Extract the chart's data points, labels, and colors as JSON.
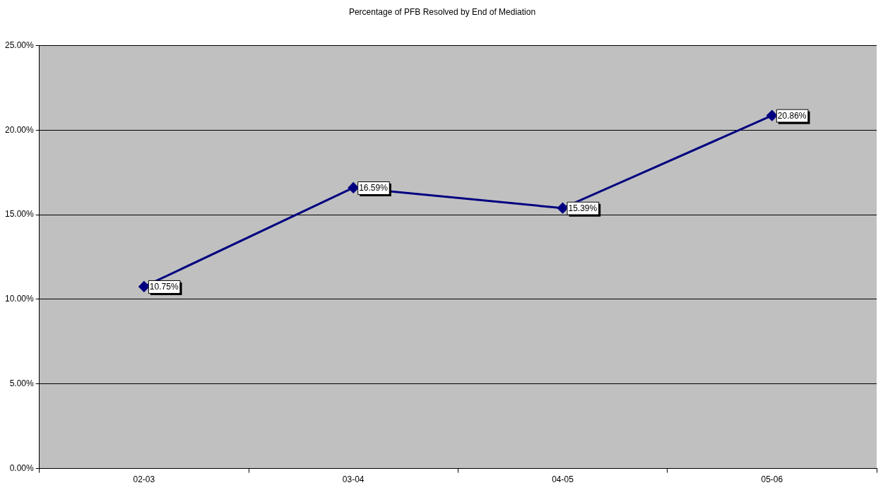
{
  "chart_data": {
    "type": "line",
    "title": "Percentage of PFB Resolved by End of Mediation",
    "categories": [
      "02-03",
      "03-04",
      "04-05",
      "05-06"
    ],
    "series": [
      {
        "color": "#000080",
        "values": [
          10.75,
          16.59,
          15.39,
          20.86
        ],
        "value_labels": [
          "10.75%",
          "16.59%",
          "15.39%",
          "20.86%"
        ]
      }
    ],
    "ylim": [
      0,
      25
    ],
    "yticks": [
      {
        "value": 0,
        "label": "0.00%"
      },
      {
        "value": 5,
        "label": "5.00%"
      },
      {
        "value": 10,
        "label": "10.00%"
      },
      {
        "value": 15,
        "label": "15.00%"
      },
      {
        "value": 20,
        "label": "20.00%"
      },
      {
        "value": 25,
        "label": "25.00%"
      }
    ],
    "grid": "y",
    "legend": false,
    "marker": "diamond",
    "line_style": "solid"
  }
}
